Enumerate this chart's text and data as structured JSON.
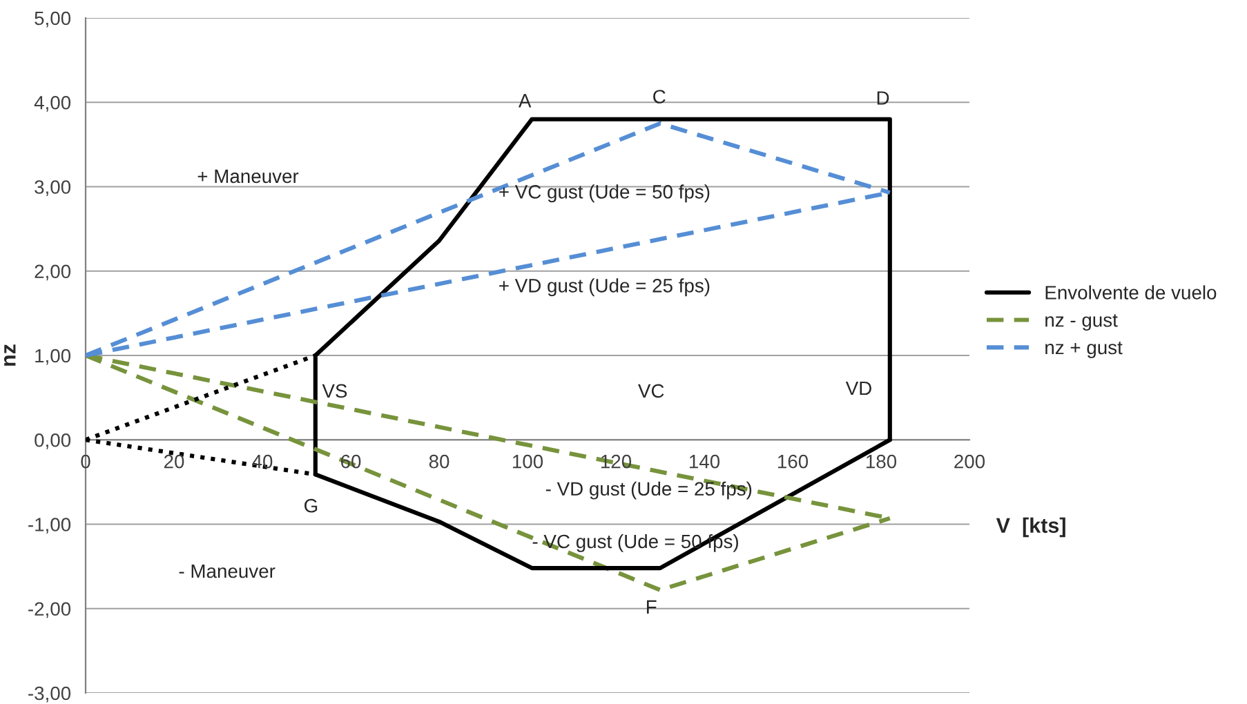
{
  "chart_data": {
    "type": "line",
    "xlabel": "V  [kts]",
    "ylabel": "nz",
    "xlim": [
      0,
      200
    ],
    "xticks": [
      0,
      20,
      40,
      60,
      80,
      100,
      120,
      140,
      160,
      180,
      200
    ],
    "ylim": [
      -3,
      5
    ],
    "yticks": [
      {
        "value": -3,
        "label": "-3,00"
      },
      {
        "value": -2,
        "label": "-2,00"
      },
      {
        "value": -1,
        "label": "-1,00"
      },
      {
        "value": 0,
        "label": "0,00"
      },
      {
        "value": 1,
        "label": "1,00"
      },
      {
        "value": 2,
        "label": "2,00"
      },
      {
        "value": 3,
        "label": "3,00"
      },
      {
        "value": 4,
        "label": "4,00"
      },
      {
        "value": 5,
        "label": "5,00"
      }
    ],
    "grid": "y",
    "legend": "right",
    "line_style": "solid",
    "marker": "none",
    "series": [
      {
        "name": "Envolvente de vuelo",
        "color": "#000000",
        "x": [
          52,
          52,
          80,
          101,
          182,
          182
        ],
        "values": [
          -0.41,
          1.0,
          2.36,
          3.8,
          3.8,
          0.0
        ]
      },
      {
        "name": "nz - gust",
        "color": "#77933c",
        "line_style": "dashed",
        "x": [
          0,
          130,
          182
        ],
        "values": [
          1.0,
          -1.78,
          -0.93
        ]
      },
      {
        "name": "nz + gust",
        "color": "#558ed5",
        "line_style": "dashed",
        "x": [
          0,
          130,
          182
        ],
        "values": [
          1.0,
          3.75,
          2.93
        ]
      },
      {
        "color": "#000000",
        "x": [
          52,
          80,
          101,
          130,
          182
        ],
        "values": [
          -0.41,
          -0.97,
          -1.52,
          -1.52,
          0.0
        ]
      },
      {
        "color": "#77933c",
        "line_style": "dashed",
        "x": [
          0,
          182
        ],
        "values": [
          1.0,
          -0.93
        ]
      },
      {
        "color": "#558ed5",
        "line_style": "dashed",
        "x": [
          0,
          182
        ],
        "values": [
          1.0,
          2.93
        ]
      },
      {
        "color": "#000000",
        "line_style": "dotted",
        "x": [
          0,
          52
        ],
        "values": [
          0.0,
          1.0
        ]
      },
      {
        "color": "#000000",
        "line_style": "dotted",
        "x": [
          0,
          52
        ],
        "values": [
          0.0,
          -0.41
        ]
      }
    ],
    "annotations": [
      "A",
      "C",
      "D",
      "+ Maneuver",
      "+ VC gust (Ude = 50 fps)",
      "+ VD gust (Ude = 25 fps)",
      "VS",
      "VC",
      "VD",
      "G",
      "- VD gust (Ude = 25 fps)",
      "- VC gust (Ude = 50 fps)",
      "F",
      "- Maneuver"
    ]
  }
}
